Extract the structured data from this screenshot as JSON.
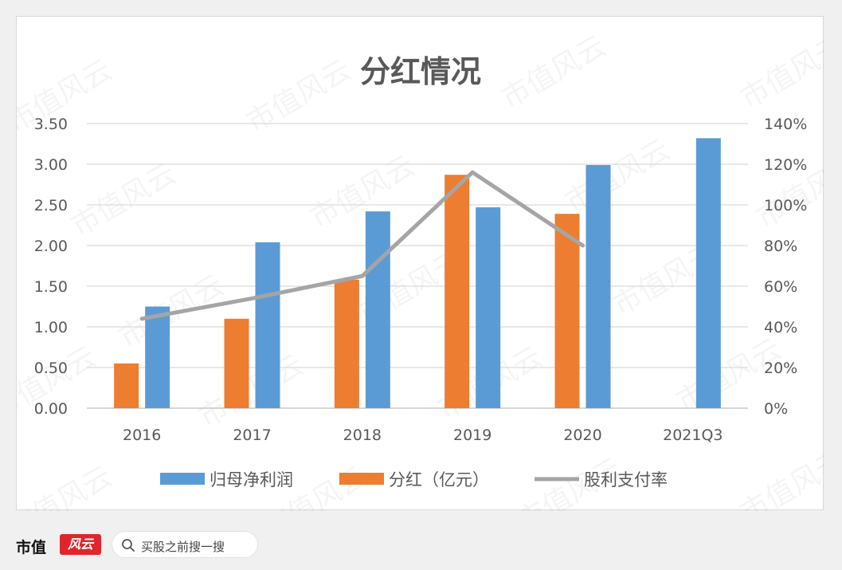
{
  "chart_data": {
    "type": "bar",
    "title": "分红情况",
    "categories": [
      "2016",
      "2017",
      "2018",
      "2019",
      "2020",
      "2021Q3"
    ],
    "series": [
      {
        "name": "分红（亿元）",
        "kind": "bar",
        "axis": "left",
        "color": "#ed7d31",
        "values": [
          0.55,
          1.1,
          1.58,
          2.87,
          2.39,
          null
        ]
      },
      {
        "name": "归母净利润",
        "kind": "bar",
        "axis": "left",
        "color": "#5b9bd5",
        "values": [
          1.25,
          2.04,
          2.42,
          2.47,
          2.99,
          3.32
        ]
      },
      {
        "name": "股利支付率",
        "kind": "line",
        "axis": "right",
        "color": "#a5a5a5",
        "values": [
          0.44,
          0.54,
          0.65,
          1.16,
          0.8,
          null
        ]
      }
    ],
    "legend_order": [
      "归母净利润",
      "分红（亿元）",
      "股利支付率"
    ],
    "legend_position": "bottom",
    "y_left": {
      "ylim": [
        0,
        3.5
      ],
      "ticks": [
        "0.00",
        "0.50",
        "1.00",
        "1.50",
        "2.00",
        "2.50",
        "3.00",
        "3.50"
      ]
    },
    "y_right": {
      "ylim": [
        0,
        1.4
      ],
      "ticks": [
        "0%",
        "20%",
        "40%",
        "60%",
        "80%",
        "100%",
        "120%",
        "140%"
      ]
    },
    "grid": true
  },
  "watermark_text": "市值风云",
  "footer": {
    "brand": "市值",
    "logo": "风云",
    "search_text": "买股之前搜一搜"
  }
}
